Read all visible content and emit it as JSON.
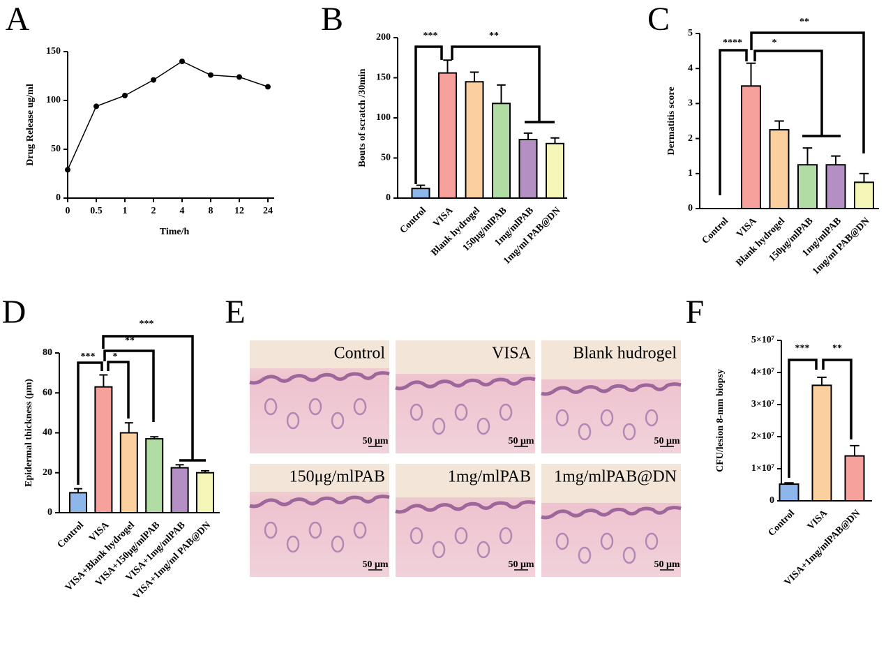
{
  "chart_data": [
    {
      "type": "line",
      "panel": "A",
      "x_label": "Time/h",
      "y_label": "Drug Release  ug/ml",
      "categories": [
        "0",
        "0.5",
        "1",
        "2",
        "4",
        "8",
        "12",
        "24"
      ],
      "values": [
        29,
        94,
        105,
        121,
        140,
        126,
        124,
        114
      ],
      "color": "#000000",
      "ylim": [
        0,
        150
      ],
      "yticks": [
        0,
        50,
        100,
        150
      ]
    },
    {
      "type": "bar",
      "panel": "B",
      "y_label": "Bouts of scratch /30min",
      "categories": [
        "Control",
        "VISA",
        "Blank hydrogel",
        "150μg/mlPAB",
        "1mg/mlPAB",
        "1mg/ml PAB@DN"
      ],
      "values": [
        12,
        156,
        145,
        118,
        73,
        68
      ],
      "errors": [
        4,
        16,
        12,
        23,
        8,
        7
      ],
      "colors": [
        "#8db6ea",
        "#f7a19c",
        "#fccf9e",
        "#b1dca4",
        "#b48fc4",
        "#f5f7b8"
      ],
      "ylim": [
        0,
        200
      ],
      "yticks": [
        0,
        50,
        100,
        150,
        200
      ],
      "annotations": [
        "***",
        "**"
      ]
    },
    {
      "type": "bar",
      "panel": "C",
      "y_label": "Dermatitis score",
      "categories": [
        "Control",
        "VISA",
        "Blank hydrogel",
        "150μg/mlPAB",
        "1mg/mlPAB",
        "1mg/ml PAB@DN"
      ],
      "values": [
        0,
        3.5,
        2.25,
        1.25,
        1.25,
        0.75
      ],
      "errors": [
        0,
        0.65,
        0.25,
        0.48,
        0.25,
        0.25
      ],
      "colors": [
        "#8db6ea",
        "#f7a19c",
        "#fccf9e",
        "#b1dca4",
        "#b48fc4",
        "#f5f7b8"
      ],
      "ylim": [
        0,
        5
      ],
      "yticks": [
        0,
        1,
        2,
        3,
        4,
        5
      ],
      "annotations": [
        "****",
        "*",
        "**"
      ]
    },
    {
      "type": "bar",
      "panel": "D",
      "y_label": "Epidermal thickness (μm)",
      "categories": [
        "Control",
        "VISA",
        "VISA+Blank hydrogel",
        "VISA+150μg/mlPAB",
        "VISA+1mg/mlPAB",
        "VISA+1mg/ml PAB@DN"
      ],
      "values": [
        10,
        63,
        40,
        37,
        22.5,
        20
      ],
      "errors": [
        2,
        6,
        5,
        1,
        1.5,
        1
      ],
      "colors": [
        "#8db6ea",
        "#f7a19c",
        "#fccf9e",
        "#b1dca4",
        "#b48fc4",
        "#f5f7b8"
      ],
      "ylim": [
        0,
        80
      ],
      "yticks": [
        0,
        20,
        40,
        60,
        80
      ],
      "annotations": [
        "***",
        "*",
        "**",
        "***"
      ]
    },
    {
      "type": "bar",
      "panel": "F",
      "y_label": "CFU/lesion 8-mm biopsy",
      "categories": [
        "Control",
        "VISA",
        "VISA+1mg/mlPAB@DN"
      ],
      "values": [
        5200000,
        36000000,
        14000000
      ],
      "errors": [
        400000,
        2500000,
        3200000
      ],
      "colors": [
        "#8db6ea",
        "#fccf9e",
        "#f7a19c"
      ],
      "ylim": [
        0,
        50000000
      ],
      "yticks": [
        0,
        {
          "value": 10000000,
          "label": "1×10⁷"
        },
        {
          "value": 20000000,
          "label": "2×10⁷"
        },
        {
          "value": 30000000,
          "label": "3×10⁷"
        },
        {
          "value": 40000000,
          "label": "4×10⁷"
        },
        {
          "value": 50000000,
          "label": "5×10⁷"
        }
      ],
      "annotations": [
        "***",
        "**"
      ]
    }
  ],
  "histology": {
    "panel": "E",
    "scale_bar": "50 μm",
    "images": [
      "Control",
      "VISA",
      "Blank hudrogel",
      "150μg/mlPAB",
      "1mg/mlPAB",
      "1mg/mlPAB@DN"
    ]
  }
}
